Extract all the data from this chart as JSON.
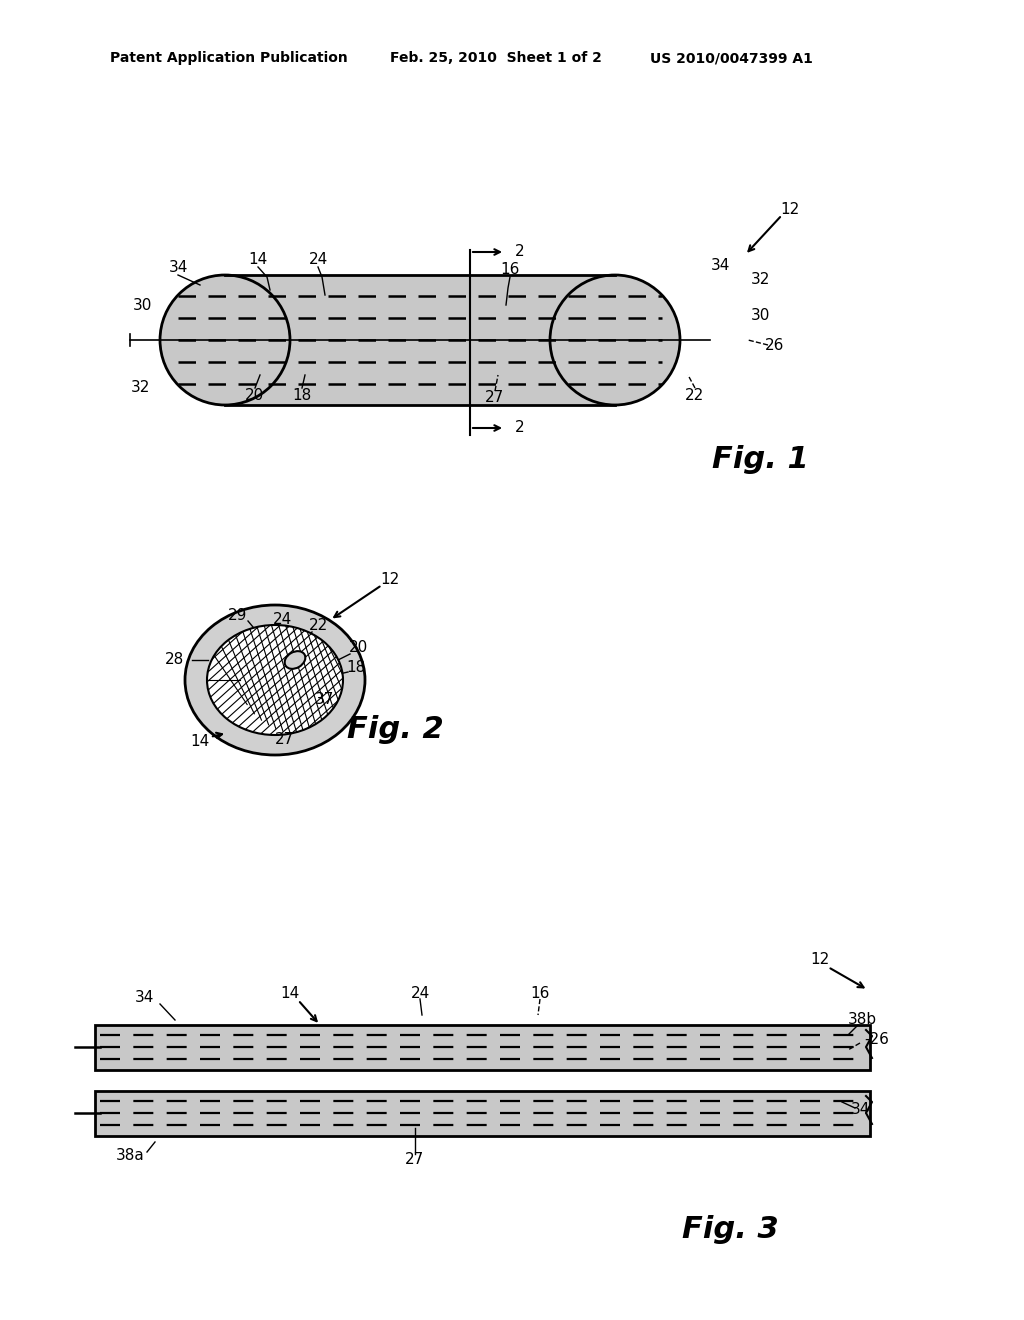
{
  "bg_color": "#ffffff",
  "header_left": "Patent Application Publication",
  "header_mid": "Feb. 25, 2010  Sheet 1 of 2",
  "header_right": "US 2010/0047399 A1",
  "fig1_label": "Fig. 1",
  "fig2_label": "Fig. 2",
  "fig3_label": "Fig. 3",
  "gray_fill": "#c8c8c8",
  "dark_gray": "#808080",
  "line_color": "#000000"
}
